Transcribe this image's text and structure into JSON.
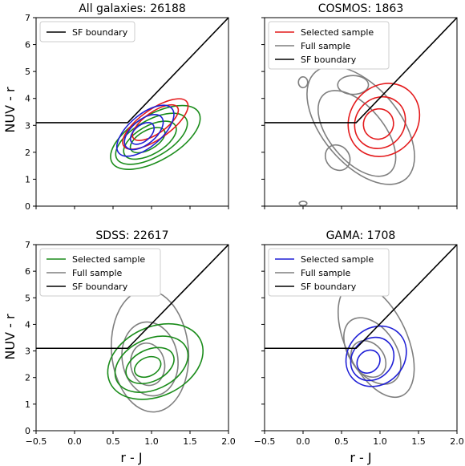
{
  "figure": {
    "xlabel": "r - J",
    "ylabel": "NUV - r"
  },
  "legend_labels": {
    "selected": "Selected sample",
    "full": "Full sample",
    "sf": "SF boundary"
  },
  "colors": {
    "red": "#e41a1c",
    "green": "#1a8c1a",
    "blue": "#1f1fd6",
    "gray": "#7f7f7f",
    "black": "#000000"
  },
  "chart_data": [
    {
      "type": "contour",
      "title": "All galaxies: 26188",
      "xlim": [
        -0.5,
        2.0
      ],
      "ylim": [
        0,
        7
      ],
      "xticks": [
        "−0.5",
        "0.0",
        "0.5",
        "1.0",
        "1.5",
        "2.0"
      ],
      "yticks": [
        "0",
        "1",
        "2",
        "3",
        "4",
        "5",
        "6",
        "7"
      ],
      "legend": [
        "SF boundary"
      ],
      "legend_position": "top-left",
      "sf_boundary": [
        [
          -0.5,
          3.1
        ],
        [
          0.69,
          3.1
        ],
        [
          2.0,
          7.0
        ]
      ],
      "contours": [
        {
          "color": "green",
          "cx": 1.05,
          "cy": 2.55,
          "rx": 0.65,
          "ry": 0.85,
          "angle": 30
        },
        {
          "color": "green",
          "cx": 1.0,
          "cy": 2.5,
          "rx": 0.52,
          "ry": 0.68,
          "angle": 30
        },
        {
          "color": "green",
          "cx": 0.98,
          "cy": 2.45,
          "rx": 0.38,
          "ry": 0.52,
          "angle": 30
        },
        {
          "color": "green",
          "cx": 0.95,
          "cy": 2.45,
          "rx": 0.25,
          "ry": 0.35,
          "angle": 30
        },
        {
          "color": "red",
          "cx": 1.05,
          "cy": 3.05,
          "rx": 0.5,
          "ry": 0.55,
          "angle": 35
        },
        {
          "color": "red",
          "cx": 1.05,
          "cy": 3.1,
          "rx": 0.35,
          "ry": 0.4,
          "angle": 35
        },
        {
          "color": "blue",
          "cx": 0.92,
          "cy": 2.8,
          "rx": 0.45,
          "ry": 0.6,
          "angle": 40
        },
        {
          "color": "blue",
          "cx": 0.9,
          "cy": 2.75,
          "rx": 0.3,
          "ry": 0.45,
          "angle": 40
        },
        {
          "color": "blue",
          "cx": 0.88,
          "cy": 2.7,
          "rx": 0.18,
          "ry": 0.3,
          "angle": 40
        }
      ]
    },
    {
      "type": "contour",
      "title": "COSMOS: 1863",
      "xlim": [
        -0.5,
        2.0
      ],
      "ylim": [
        0,
        7
      ],
      "xticks": [
        "−0.5",
        "0.0",
        "0.5",
        "1.0",
        "1.5",
        "2.0"
      ],
      "yticks": [
        "0",
        "1",
        "2",
        "3",
        "4",
        "5",
        "6",
        "7"
      ],
      "legend": [
        "Selected sample",
        "Full sample",
        "SF boundary"
      ],
      "legend_position": "top-left",
      "sf_boundary": [
        [
          -0.5,
          3.1
        ],
        [
          0.69,
          3.1
        ],
        [
          2.0,
          7.0
        ]
      ],
      "contours": [
        {
          "color": "gray",
          "cx": 0.75,
          "cy": 3.0,
          "rx": 0.5,
          "ry": 2.6,
          "angle": 40
        },
        {
          "color": "gray",
          "cx": 0.7,
          "cy": 2.7,
          "rx": 0.35,
          "ry": 1.9,
          "angle": 40
        },
        {
          "color": "gray",
          "cx": 0.45,
          "cy": 1.8,
          "rx": 0.15,
          "ry": 0.5,
          "angle": 40
        },
        {
          "color": "gray",
          "cx": 0.65,
          "cy": 4.5,
          "rx": 0.2,
          "ry": 0.35,
          "angle": 0
        },
        {
          "color": "gray",
          "cx": 0.0,
          "cy": 4.6,
          "rx": 0.06,
          "ry": 0.2,
          "angle": 0
        },
        {
          "color": "gray",
          "cx": 0.0,
          "cy": 0.1,
          "rx": 0.05,
          "ry": 0.08,
          "angle": 0
        },
        {
          "color": "red",
          "cx": 1.05,
          "cy": 3.2,
          "rx": 0.5,
          "ry": 1.25,
          "angle": 50
        },
        {
          "color": "red",
          "cx": 1.0,
          "cy": 3.1,
          "rx": 0.35,
          "ry": 0.9,
          "angle": 50
        },
        {
          "color": "red",
          "cx": 0.98,
          "cy": 3.05,
          "rx": 0.2,
          "ry": 0.55,
          "angle": 50
        }
      ]
    },
    {
      "type": "contour",
      "title": "SDSS: 22617",
      "xlim": [
        -0.5,
        2.0
      ],
      "ylim": [
        0,
        7
      ],
      "xticks": [
        "−0.5",
        "0.0",
        "0.5",
        "1.0",
        "1.5",
        "2.0"
      ],
      "yticks": [
        "0",
        "1",
        "2",
        "3",
        "4",
        "5",
        "6",
        "7"
      ],
      "legend": [
        "Selected sample",
        "Full sample",
        "SF boundary"
      ],
      "legend_position": "top-left",
      "sf_boundary": [
        [
          -0.5,
          3.1
        ],
        [
          0.69,
          3.1
        ],
        [
          2.0,
          7.0
        ]
      ],
      "contours": [
        {
          "color": "gray",
          "cx": 0.98,
          "cy": 3.0,
          "rx": 0.5,
          "ry": 2.3,
          "angle": 5
        },
        {
          "color": "gray",
          "cx": 0.98,
          "cy": 2.7,
          "rx": 0.36,
          "ry": 1.4,
          "angle": 10
        },
        {
          "color": "gray",
          "cx": 0.95,
          "cy": 2.5,
          "rx": 0.22,
          "ry": 0.8,
          "angle": 10
        },
        {
          "color": "green",
          "cx": 1.05,
          "cy": 2.6,
          "rx": 0.65,
          "ry": 1.3,
          "angle": 25
        },
        {
          "color": "green",
          "cx": 1.0,
          "cy": 2.5,
          "rx": 0.5,
          "ry": 0.95,
          "angle": 25
        },
        {
          "color": "green",
          "cx": 0.98,
          "cy": 2.45,
          "rx": 0.33,
          "ry": 0.6,
          "angle": 25
        },
        {
          "color": "green",
          "cx": 0.95,
          "cy": 2.4,
          "rx": 0.18,
          "ry": 0.35,
          "angle": 25
        }
      ]
    },
    {
      "type": "contour",
      "title": "GAMA: 1708",
      "xlim": [
        -0.5,
        2.0
      ],
      "ylim": [
        0,
        7
      ],
      "xticks": [
        "−0.5",
        "0.0",
        "0.5",
        "1.0",
        "1.5",
        "2.0"
      ],
      "yticks": [
        "0",
        "1",
        "2",
        "3",
        "4",
        "5",
        "6",
        "7"
      ],
      "legend": [
        "Selected sample",
        "Full sample",
        "SF boundary"
      ],
      "legend_position": "top-left",
      "sf_boundary": [
        [
          -0.5,
          3.1
        ],
        [
          0.69,
          3.1
        ],
        [
          2.0,
          7.0
        ]
      ],
      "contours": [
        {
          "color": "gray",
          "cx": 0.95,
          "cy": 3.4,
          "rx": 0.4,
          "ry": 2.3,
          "angle": 25
        },
        {
          "color": "gray",
          "cx": 0.9,
          "cy": 3.0,
          "rx": 0.3,
          "ry": 1.4,
          "angle": 35
        },
        {
          "color": "gray",
          "cx": 0.85,
          "cy": 2.7,
          "rx": 0.2,
          "ry": 0.75,
          "angle": 40
        },
        {
          "color": "blue",
          "cx": 0.95,
          "cy": 2.8,
          "rx": 0.42,
          "ry": 1.05,
          "angle": 45
        },
        {
          "color": "blue",
          "cx": 0.9,
          "cy": 2.7,
          "rx": 0.3,
          "ry": 0.75,
          "angle": 45
        },
        {
          "color": "blue",
          "cx": 0.85,
          "cy": 2.6,
          "rx": 0.16,
          "ry": 0.4,
          "angle": 45
        }
      ]
    }
  ]
}
